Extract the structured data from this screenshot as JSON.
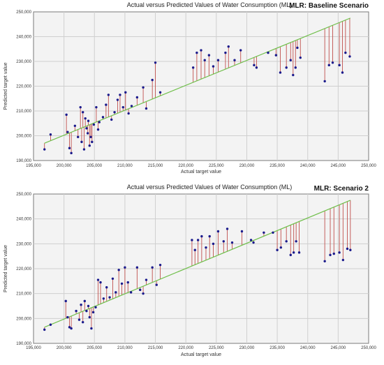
{
  "chart_data": [
    {
      "type": "scatter",
      "title": "Actual versus Predicted Values of Water Consumption (ML)",
      "scenario_label": "MLR: Baseline Scenario",
      "xlabel": "Actual target value",
      "ylabel": "Predicted target value",
      "xlim": [
        195000,
        250000
      ],
      "ylim": [
        190000,
        250000
      ],
      "x_ticks": [
        "195,000",
        "200,000",
        "205,000",
        "210,000",
        "215,000",
        "220,000",
        "225,000",
        "230,000",
        "235,000",
        "240,000",
        "245,000",
        "250,000"
      ],
      "y_ticks": [
        "190,000",
        "200,000",
        "210,000",
        "220,000",
        "230,000",
        "240,000",
        "250,000"
      ],
      "grid": true,
      "legend": "none",
      "colors": {
        "points": "#1a1a8c",
        "residuals": "#c0504d",
        "fit_line": "#6fbf4a"
      },
      "fit_line": {
        "x": [
          196800,
          247000
        ],
        "y": [
          197000,
          247500
        ]
      },
      "points": [
        {
          "x": 196800,
          "y": 194500
        },
        {
          "x": 197800,
          "y": 200500
        },
        {
          "x": 200400,
          "y": 208500
        },
        {
          "x": 200600,
          "y": 201500
        },
        {
          "x": 200900,
          "y": 195000
        },
        {
          "x": 201200,
          "y": 193000
        },
        {
          "x": 201800,
          "y": 204000
        },
        {
          "x": 202300,
          "y": 199500
        },
        {
          "x": 202700,
          "y": 211500
        },
        {
          "x": 202900,
          "y": 197500
        },
        {
          "x": 203100,
          "y": 209500
        },
        {
          "x": 203300,
          "y": 194500
        },
        {
          "x": 203500,
          "y": 207000
        },
        {
          "x": 203700,
          "y": 203000
        },
        {
          "x": 203900,
          "y": 201000
        },
        {
          "x": 204000,
          "y": 206000
        },
        {
          "x": 204200,
          "y": 196000
        },
        {
          "x": 204400,
          "y": 199500
        },
        {
          "x": 204600,
          "y": 197500
        },
        {
          "x": 204900,
          "y": 204500
        },
        {
          "x": 205300,
          "y": 211500
        },
        {
          "x": 205600,
          "y": 202500
        },
        {
          "x": 205800,
          "y": 205500
        },
        {
          "x": 206400,
          "y": 207500
        },
        {
          "x": 206900,
          "y": 212500
        },
        {
          "x": 207300,
          "y": 216500
        },
        {
          "x": 207800,
          "y": 206500
        },
        {
          "x": 208300,
          "y": 209500
        },
        {
          "x": 208800,
          "y": 214500
        },
        {
          "x": 209200,
          "y": 216500
        },
        {
          "x": 209700,
          "y": 211500
        },
        {
          "x": 210100,
          "y": 217500
        },
        {
          "x": 210600,
          "y": 209000
        },
        {
          "x": 211100,
          "y": 212000
        },
        {
          "x": 212000,
          "y": 215500
        },
        {
          "x": 213000,
          "y": 219500
        },
        {
          "x": 213500,
          "y": 211000
        },
        {
          "x": 214500,
          "y": 222500
        },
        {
          "x": 215000,
          "y": 229500
        },
        {
          "x": 215800,
          "y": 217500
        },
        {
          "x": 221200,
          "y": 227500
        },
        {
          "x": 221800,
          "y": 233500
        },
        {
          "x": 222500,
          "y": 234500
        },
        {
          "x": 223100,
          "y": 230500
        },
        {
          "x": 223800,
          "y": 232500
        },
        {
          "x": 224500,
          "y": 228000
        },
        {
          "x": 225300,
          "y": 230500
        },
        {
          "x": 226500,
          "y": 233500
        },
        {
          "x": 227000,
          "y": 236000
        },
        {
          "x": 228000,
          "y": 230500
        },
        {
          "x": 229000,
          "y": 234500
        },
        {
          "x": 231200,
          "y": 228500
        },
        {
          "x": 231600,
          "y": 227500
        },
        {
          "x": 233500,
          "y": 233500
        },
        {
          "x": 234800,
          "y": 232500
        },
        {
          "x": 235500,
          "y": 225500
        },
        {
          "x": 236500,
          "y": 227500
        },
        {
          "x": 237200,
          "y": 230500
        },
        {
          "x": 237600,
          "y": 224500
        },
        {
          "x": 238000,
          "y": 227500
        },
        {
          "x": 238300,
          "y": 235500
        },
        {
          "x": 238800,
          "y": 231500
        },
        {
          "x": 242800,
          "y": 222000
        },
        {
          "x": 243500,
          "y": 228500
        },
        {
          "x": 244100,
          "y": 229500
        },
        {
          "x": 245200,
          "y": 228500
        },
        {
          "x": 245700,
          "y": 225500
        },
        {
          "x": 246200,
          "y": 233500
        },
        {
          "x": 246900,
          "y": 232000
        }
      ]
    },
    {
      "type": "scatter",
      "title": "Actual versus Predicted Values of Water Consumption (ML)",
      "scenario_label": "MLR: Scenario 2",
      "xlabel": "Actual target value",
      "ylabel": "Predicted target value",
      "xlim": [
        195000,
        250000
      ],
      "ylim": [
        190000,
        250000
      ],
      "x_ticks": [
        "195,000",
        "200,000",
        "205,000",
        "210,000",
        "215,000",
        "220,000",
        "225,000",
        "230,000",
        "235,000",
        "240,000",
        "245,000",
        "250,000"
      ],
      "y_ticks": [
        "190,000",
        "200,000",
        "210,000",
        "220,000",
        "230,000",
        "240,000",
        "250,000"
      ],
      "grid": true,
      "legend": "none",
      "colors": {
        "points": "#1a1a8c",
        "residuals": "#c0504d",
        "fit_line": "#6fbf4a"
      },
      "fit_line": {
        "x": [
          196800,
          247000
        ],
        "y": [
          196500,
          247500
        ]
      },
      "points": [
        {
          "x": 196800,
          "y": 195500
        },
        {
          "x": 197800,
          "y": 197500
        },
        {
          "x": 200300,
          "y": 207000
        },
        {
          "x": 200600,
          "y": 200500
        },
        {
          "x": 200900,
          "y": 196500
        },
        {
          "x": 201200,
          "y": 196000
        },
        {
          "x": 202000,
          "y": 203000
        },
        {
          "x": 202500,
          "y": 199500
        },
        {
          "x": 202800,
          "y": 205500
        },
        {
          "x": 203100,
          "y": 198500
        },
        {
          "x": 203400,
          "y": 207000
        },
        {
          "x": 203700,
          "y": 203000
        },
        {
          "x": 204000,
          "y": 205000
        },
        {
          "x": 204200,
          "y": 200500
        },
        {
          "x": 204500,
          "y": 196000
        },
        {
          "x": 204800,
          "y": 202500
        },
        {
          "x": 205200,
          "y": 204500
        },
        {
          "x": 205600,
          "y": 215500
        },
        {
          "x": 206000,
          "y": 214500
        },
        {
          "x": 206500,
          "y": 208000
        },
        {
          "x": 207000,
          "y": 212500
        },
        {
          "x": 207500,
          "y": 208500
        },
        {
          "x": 208000,
          "y": 216000
        },
        {
          "x": 208500,
          "y": 210500
        },
        {
          "x": 209000,
          "y": 219500
        },
        {
          "x": 209500,
          "y": 214000
        },
        {
          "x": 210000,
          "y": 220500
        },
        {
          "x": 210500,
          "y": 214500
        },
        {
          "x": 211000,
          "y": 210500
        },
        {
          "x": 212000,
          "y": 220500
        },
        {
          "x": 212500,
          "y": 211500
        },
        {
          "x": 213000,
          "y": 210000
        },
        {
          "x": 213500,
          "y": 215500
        },
        {
          "x": 214500,
          "y": 220500
        },
        {
          "x": 215200,
          "y": 213500
        },
        {
          "x": 215800,
          "y": 221500
        },
        {
          "x": 221000,
          "y": 231500
        },
        {
          "x": 221500,
          "y": 227500
        },
        {
          "x": 222000,
          "y": 231500
        },
        {
          "x": 222600,
          "y": 233000
        },
        {
          "x": 223300,
          "y": 228500
        },
        {
          "x": 223900,
          "y": 233000
        },
        {
          "x": 224500,
          "y": 230000
        },
        {
          "x": 225300,
          "y": 235000
        },
        {
          "x": 226200,
          "y": 231000
        },
        {
          "x": 226800,
          "y": 236000
        },
        {
          "x": 227600,
          "y": 230500
        },
        {
          "x": 229200,
          "y": 235000
        },
        {
          "x": 230700,
          "y": 231500
        },
        {
          "x": 231100,
          "y": 230500
        },
        {
          "x": 232800,
          "y": 234500
        },
        {
          "x": 234300,
          "y": 234500
        },
        {
          "x": 235000,
          "y": 227500
        },
        {
          "x": 235600,
          "y": 228500
        },
        {
          "x": 236500,
          "y": 231000
        },
        {
          "x": 237200,
          "y": 225500
        },
        {
          "x": 237700,
          "y": 226500
        },
        {
          "x": 238100,
          "y": 231000
        },
        {
          "x": 238600,
          "y": 226500
        },
        {
          "x": 242800,
          "y": 223000
        },
        {
          "x": 243700,
          "y": 225500
        },
        {
          "x": 244300,
          "y": 226000
        },
        {
          "x": 245200,
          "y": 226500
        },
        {
          "x": 245800,
          "y": 223500
        },
        {
          "x": 246500,
          "y": 228000
        },
        {
          "x": 247000,
          "y": 227500
        }
      ]
    }
  ]
}
